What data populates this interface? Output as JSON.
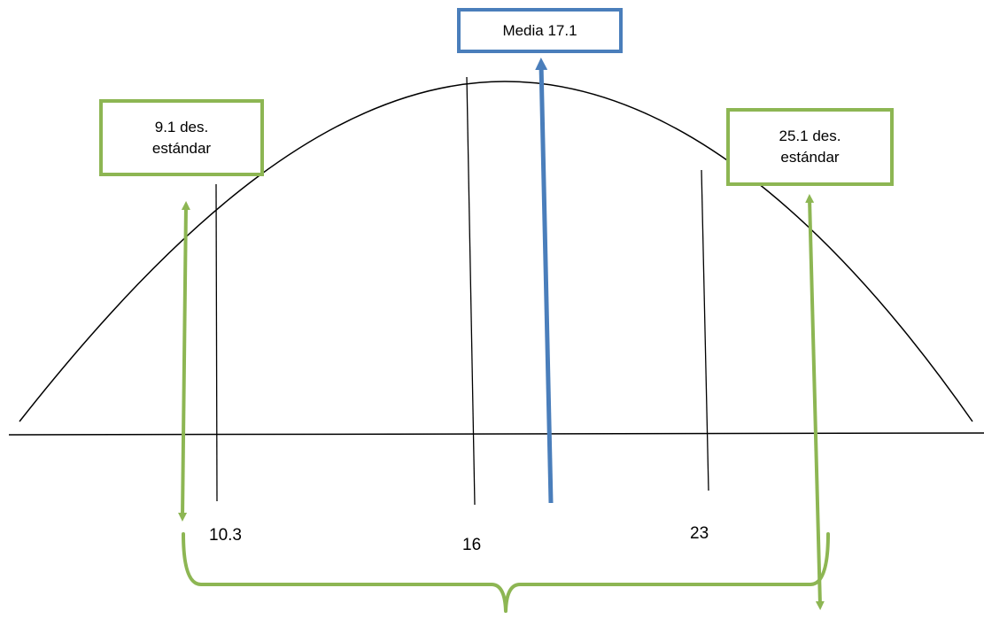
{
  "mean_box": {
    "text": "Media 17.1"
  },
  "left_box": {
    "line1": "9.1 des.",
    "line2": "estándar"
  },
  "right_box": {
    "line1": "25.1 des.",
    "line2": "estándar"
  },
  "marks": [
    {
      "label": "10.3"
    },
    {
      "label": "16"
    },
    {
      "label": "23"
    }
  ],
  "colors": {
    "mean_arrow": "#4a7ebb",
    "sd_arrows": "#8db653",
    "curve": "#000000"
  }
}
